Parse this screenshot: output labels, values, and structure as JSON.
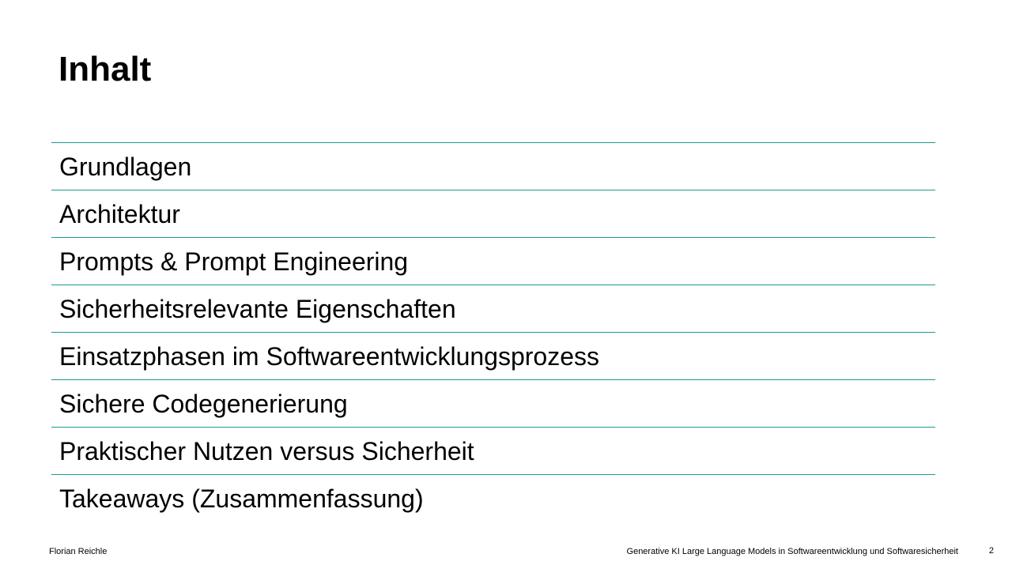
{
  "slide": {
    "title": "Inhalt",
    "items": [
      "Grundlagen",
      "Architektur",
      "Prompts & Prompt Engineering",
      "Sicherheitsrelevante Eigenschaften",
      "Einsatzphasen im Softwareentwicklungsprozess",
      "Sichere Codegenerierung",
      "Praktischer Nutzen versus Sicherheit",
      "Takeaways (Zusammenfassung)"
    ],
    "divider_color": "#1a9c8c"
  },
  "footer": {
    "author": "Florian Reichle",
    "presentation_title": "Generative KI Large Language Models in Softwareentwicklung und Softwaresicherheit",
    "page_number": "2"
  }
}
